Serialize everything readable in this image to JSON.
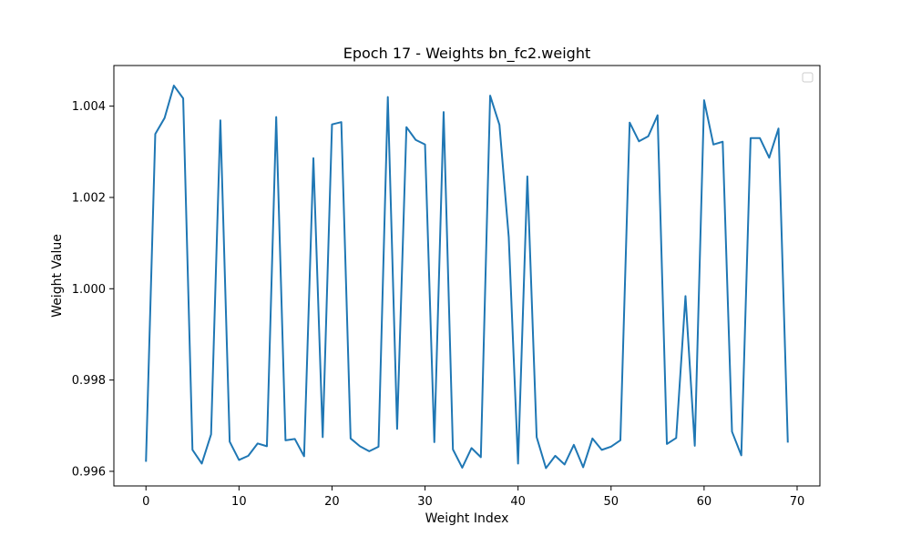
{
  "chart_data": {
    "type": "line",
    "title": "Epoch 17 - Weights bn_fc2.weight",
    "xlabel": "Weight Index",
    "ylabel": "Weight Value",
    "xlim": [
      -3.45,
      72.45
    ],
    "ylim": [
      0.99568,
      1.00489
    ],
    "xticks": [
      0,
      10,
      20,
      30,
      40,
      50,
      60,
      70
    ],
    "yticks": [
      0.996,
      0.998,
      1.0,
      1.002,
      1.004
    ],
    "ytick_labels": [
      "0.996",
      "0.998",
      "1.000",
      "1.002",
      "1.004"
    ],
    "grid": false,
    "legend": {
      "position": "top-right",
      "entries": []
    },
    "series": [
      {
        "color": "#1f77b4",
        "x": [
          0,
          1,
          2,
          3,
          4,
          5,
          6,
          7,
          8,
          9,
          10,
          11,
          12,
          13,
          14,
          15,
          16,
          17,
          18,
          19,
          20,
          21,
          22,
          23,
          24,
          25,
          26,
          27,
          28,
          29,
          30,
          31,
          32,
          33,
          34,
          35,
          36,
          37,
          38,
          39,
          40,
          41,
          42,
          43,
          44,
          45,
          46,
          47,
          48,
          49,
          50,
          51,
          52,
          53,
          54,
          55,
          56,
          57,
          58,
          59,
          60,
          61,
          62,
          63,
          64,
          65,
          66,
          67,
          68,
          69
        ],
        "y": [
          0.99621,
          1.00339,
          1.00374,
          1.00445,
          1.00417,
          0.99647,
          0.99617,
          0.99681,
          1.00369,
          0.99665,
          0.99625,
          0.99634,
          0.99661,
          0.99655,
          1.00376,
          0.99668,
          0.99671,
          0.99633,
          1.00286,
          0.99675,
          1.0036,
          1.00365,
          0.99672,
          0.99655,
          0.99644,
          0.99654,
          1.0042,
          0.99693,
          1.00354,
          1.00326,
          1.00316,
          0.99664,
          1.00387,
          0.99648,
          0.99608,
          0.99651,
          0.99631,
          1.00423,
          1.00359,
          1.00113,
          0.99617,
          1.00246,
          0.99675,
          0.99607,
          0.99634,
          0.99615,
          0.99658,
          0.99609,
          0.99672,
          0.99647,
          0.99654,
          0.99668,
          1.00364,
          1.00323,
          1.00334,
          1.0038,
          0.9966,
          0.99673,
          0.99984,
          0.99656,
          1.00413,
          1.00316,
          1.00322,
          0.99687,
          0.99635,
          1.0033,
          1.0033,
          1.00287,
          1.00351,
          0.99663
        ]
      }
    ]
  }
}
